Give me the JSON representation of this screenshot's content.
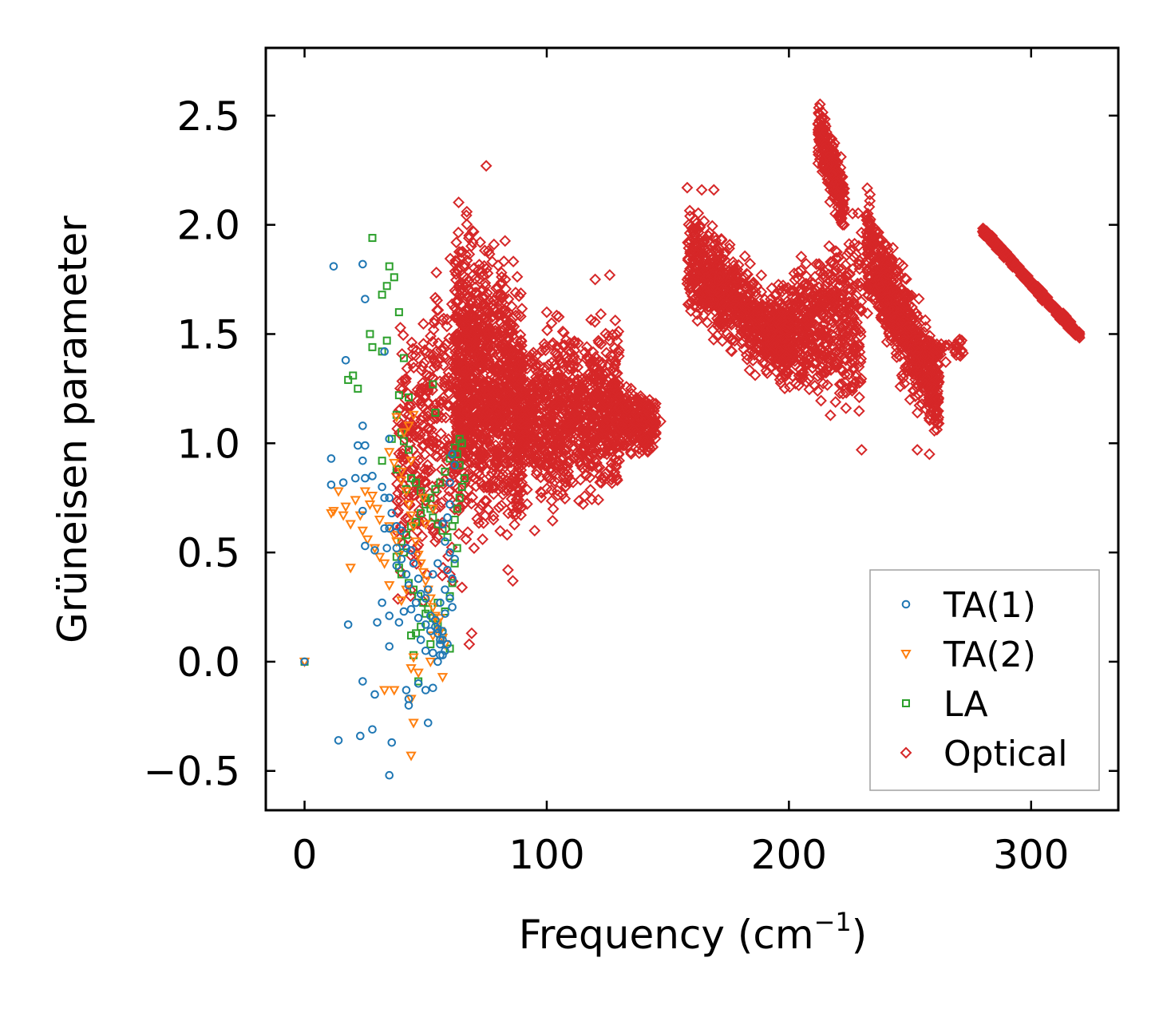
{
  "chart_data": {
    "type": "scatter",
    "title": "",
    "xlabel": "Frequency (cm",
    "xlabel_superscript": "−1",
    "xlabel_suffix": ")",
    "ylabel": "Grüneisen parameter",
    "xlim": [
      -16,
      336
    ],
    "ylim": [
      -0.68,
      2.81
    ],
    "xticks": [
      0,
      100,
      200,
      300
    ],
    "xtick_labels": [
      "0",
      "100",
      "200",
      "300"
    ],
    "yticks": [
      -0.5,
      0.0,
      0.5,
      1.0,
      1.5,
      2.0,
      2.5
    ],
    "ytick_labels": [
      "−0.5",
      "0.0",
      "0.5",
      "1.0",
      "1.5",
      "2.0",
      "2.5"
    ],
    "grid": false,
    "legend_position": "bottom-right",
    "series": [
      {
        "name": "TA(1)",
        "marker": "circle",
        "color": "#1f77b4",
        "points": [
          [
            0,
            0
          ],
          [
            12,
            1.81
          ],
          [
            24,
            1.82
          ],
          [
            25,
            1.66
          ],
          [
            33,
            1.42
          ],
          [
            17,
            1.38
          ],
          [
            11,
            0.93
          ],
          [
            11,
            0.81
          ],
          [
            16,
            0.82
          ],
          [
            24,
            1.08
          ],
          [
            22,
            0.99
          ],
          [
            25,
            0.99
          ],
          [
            24,
            0.92
          ],
          [
            21,
            0.84
          ],
          [
            25,
            0.84
          ],
          [
            28,
            0.85
          ],
          [
            32,
            0.8
          ],
          [
            33,
            0.75
          ],
          [
            35,
            0.75
          ],
          [
            35,
            1.02
          ],
          [
            36,
            0.68
          ],
          [
            33,
            0.61
          ],
          [
            35,
            0.61
          ],
          [
            38,
            0.62
          ],
          [
            40,
            0.6
          ],
          [
            24,
            0.69
          ],
          [
            25,
            0.53
          ],
          [
            29,
            0.51
          ],
          [
            34,
            0.52
          ],
          [
            38,
            0.52
          ],
          [
            42,
            0.52
          ],
          [
            44,
            0.51
          ],
          [
            40,
            0.47
          ],
          [
            45,
            0.45
          ],
          [
            38,
            0.44
          ],
          [
            42,
            0.4
          ],
          [
            47,
            0.38
          ],
          [
            43,
            0.35
          ],
          [
            48,
            0.31
          ],
          [
            50,
            0.29
          ],
          [
            46,
            0.27
          ],
          [
            41,
            0.23
          ],
          [
            44,
            0.24
          ],
          [
            47,
            0.2
          ],
          [
            52,
            0.21
          ],
          [
            50,
            0.17
          ],
          [
            54,
            0.16
          ],
          [
            55,
            0.15
          ],
          [
            56,
            0.1
          ],
          [
            57,
            0.1
          ],
          [
            55,
            0.13
          ],
          [
            57,
            0.14
          ],
          [
            53,
            0.04
          ],
          [
            56,
            0.03
          ],
          [
            57,
            0.03
          ],
          [
            55,
            0.0
          ],
          [
            59,
            0.08
          ],
          [
            50,
            0.05
          ],
          [
            32,
            0.27
          ],
          [
            35,
            0.21
          ],
          [
            30,
            0.18
          ],
          [
            18,
            0.17
          ],
          [
            35,
            0.07
          ],
          [
            39,
            0.18
          ],
          [
            48,
            0.1
          ],
          [
            24,
            -0.09
          ],
          [
            29,
            -0.15
          ],
          [
            42,
            -0.13
          ],
          [
            43,
            -0.17
          ],
          [
            43,
            -0.2
          ],
          [
            47,
            -0.1
          ],
          [
            50,
            -0.13
          ],
          [
            53,
            -0.12
          ],
          [
            51,
            -0.28
          ],
          [
            14,
            -0.36
          ],
          [
            23,
            -0.34
          ],
          [
            28,
            -0.31
          ],
          [
            36,
            -0.37
          ],
          [
            35,
            -0.52
          ],
          [
            57,
            0.63
          ],
          [
            59,
            0.66
          ],
          [
            60,
            0.72
          ],
          [
            58,
            0.55
          ],
          [
            60,
            0.5
          ],
          [
            62,
            0.47
          ],
          [
            59,
            0.42
          ],
          [
            61,
            0.38
          ],
          [
            58,
            0.33
          ],
          [
            60,
            0.29
          ],
          [
            61,
            0.25
          ],
          [
            62,
            0.9
          ],
          [
            61,
            0.95
          ],
          [
            60,
            0.82
          ],
          [
            55,
            0.45
          ],
          [
            53,
            0.4
          ],
          [
            51,
            0.33
          ],
          [
            56,
            0.27
          ],
          [
            58,
            0.22
          ],
          [
            54,
            0.19
          ],
          [
            52,
            0.14
          ],
          [
            56,
            0.08
          ],
          [
            58,
            0.05
          ]
        ]
      },
      {
        "name": "TA(2)",
        "marker": "triangle-down",
        "color": "#ff7f0e",
        "points": [
          [
            0,
            0
          ],
          [
            11,
            0.68
          ],
          [
            12,
            0.69
          ],
          [
            14,
            0.78
          ],
          [
            16,
            0.67
          ],
          [
            17,
            0.71
          ],
          [
            19,
            0.63
          ],
          [
            21,
            0.74
          ],
          [
            23,
            0.67
          ],
          [
            24,
            0.6
          ],
          [
            25,
            0.78
          ],
          [
            27,
            0.72
          ],
          [
            28,
            0.76
          ],
          [
            30,
            0.7
          ],
          [
            31,
            0.65
          ],
          [
            26,
            0.56
          ],
          [
            29,
            0.52
          ],
          [
            31,
            0.48
          ],
          [
            33,
            0.45
          ],
          [
            35,
            0.62
          ],
          [
            37,
            0.58
          ],
          [
            38,
            0.55
          ],
          [
            39,
            0.49
          ],
          [
            40,
            0.83
          ],
          [
            42,
            0.78
          ],
          [
            43,
            0.72
          ],
          [
            44,
            0.67
          ],
          [
            45,
            0.62
          ],
          [
            46,
            0.55
          ],
          [
            47,
            0.49
          ],
          [
            48,
            0.45
          ],
          [
            49,
            0.41
          ],
          [
            50,
            0.37
          ],
          [
            51,
            0.33
          ],
          [
            52,
            0.29
          ],
          [
            53,
            0.25
          ],
          [
            54,
            0.21
          ],
          [
            55,
            0.18
          ],
          [
            56,
            0.14
          ],
          [
            57,
            0.11
          ],
          [
            58,
            0.08
          ],
          [
            43,
            1.08
          ],
          [
            38,
            1.12
          ],
          [
            41,
            1.05
          ],
          [
            35,
            0.96
          ],
          [
            37,
            0.91
          ],
          [
            44,
            0.92
          ],
          [
            19,
            0.43
          ],
          [
            35,
            0.35
          ],
          [
            45,
            0.02
          ],
          [
            44,
            -0.03
          ],
          [
            47,
            -0.05
          ],
          [
            52,
            0.0
          ],
          [
            57,
            -0.07
          ],
          [
            44,
            -0.17
          ],
          [
            45,
            -0.28
          ],
          [
            44,
            -0.43
          ],
          [
            53,
            0.12
          ],
          [
            56,
            0.2
          ],
          [
            50,
            0.63
          ],
          [
            53,
            0.7
          ],
          [
            49,
            0.75
          ],
          [
            45,
            1.13
          ],
          [
            40,
            0.87
          ],
          [
            33,
            -0.13
          ],
          [
            37,
            -0.13
          ],
          [
            42,
            0.33
          ],
          [
            40,
            0.28
          ]
        ]
      },
      {
        "name": "LA",
        "marker": "square",
        "color": "#2ca02c",
        "points": [
          [
            0,
            0
          ],
          [
            28,
            1.94
          ],
          [
            35,
            1.81
          ],
          [
            34,
            1.72
          ],
          [
            32,
            1.68
          ],
          [
            37,
            1.76
          ],
          [
            39,
            1.6
          ],
          [
            27,
            1.5
          ],
          [
            28,
            1.44
          ],
          [
            34,
            1.47
          ],
          [
            32,
            1.42
          ],
          [
            18,
            1.29
          ],
          [
            20,
            1.31
          ],
          [
            22,
            1.25
          ],
          [
            41,
            1.39
          ],
          [
            39,
            1.22
          ],
          [
            43,
            1.21
          ],
          [
            53,
            1.27
          ],
          [
            54,
            1.14
          ],
          [
            38,
            1.13
          ],
          [
            40,
            1.05
          ],
          [
            36,
            1.02
          ],
          [
            41,
            1.01
          ],
          [
            43,
            0.97
          ],
          [
            32,
            0.92
          ],
          [
            38,
            0.88
          ],
          [
            44,
            0.84
          ],
          [
            42,
            0.79
          ],
          [
            46,
            0.82
          ],
          [
            48,
            0.78
          ],
          [
            50,
            0.75
          ],
          [
            52,
            0.7
          ],
          [
            53,
            0.66
          ],
          [
            55,
            0.63
          ],
          [
            57,
            0.6
          ],
          [
            59,
            0.57
          ],
          [
            61,
            0.62
          ],
          [
            62,
            0.65
          ],
          [
            63,
            0.7
          ],
          [
            64,
            0.75
          ],
          [
            65,
            0.8
          ],
          [
            66,
            0.84
          ],
          [
            64,
            0.9
          ],
          [
            63,
            0.95
          ],
          [
            65,
            1.0
          ],
          [
            64,
            1.02
          ],
          [
            62,
            0.98
          ],
          [
            60,
            0.93
          ],
          [
            58,
            0.87
          ],
          [
            56,
            0.82
          ],
          [
            54,
            0.79
          ],
          [
            52,
            0.75
          ],
          [
            50,
            0.72
          ],
          [
            48,
            0.68
          ],
          [
            46,
            0.64
          ],
          [
            44,
            0.62
          ],
          [
            42,
            0.58
          ],
          [
            40,
            0.55
          ],
          [
            41,
            0.5
          ],
          [
            38,
            0.48
          ],
          [
            39,
            0.43
          ],
          [
            40,
            0.4
          ],
          [
            43,
            0.36
          ],
          [
            45,
            0.33
          ],
          [
            47,
            0.3
          ],
          [
            49,
            0.27
          ],
          [
            51,
            0.24
          ],
          [
            53,
            0.2
          ],
          [
            55,
            0.17
          ],
          [
            57,
            0.13
          ],
          [
            50,
            0.22
          ],
          [
            48,
            0.16
          ],
          [
            46,
            0.13
          ],
          [
            44,
            0.12
          ],
          [
            55,
            0.27
          ],
          [
            58,
            0.23
          ],
          [
            60,
            0.3
          ],
          [
            61,
            0.36
          ],
          [
            62,
            0.45
          ],
          [
            63,
            0.52
          ],
          [
            47,
            -0.09
          ],
          [
            45,
            0.03
          ],
          [
            52,
            0.08
          ],
          [
            56,
            0.1
          ],
          [
            60,
            0.06
          ]
        ]
      },
      {
        "name": "Optical",
        "marker": "diamond",
        "color": "#d62728",
        "clusters": [
          {
            "x0": 38,
            "x1": 68,
            "y_hi_start": 1.75,
            "y_hi_end": 2.05,
            "y_lo_start": 0.1,
            "y_lo_end": 0.3,
            "count": 380
          },
          {
            "x0": 62,
            "x1": 90,
            "y_hi_start": 2.2,
            "y_hi_end": 1.95,
            "y_lo_start": 0.55,
            "y_lo_end": 0.37,
            "count": 1100
          },
          {
            "x0": 88,
            "x1": 130,
            "y_hi_start": 1.6,
            "y_hi_end": 1.7,
            "y_lo_start": 0.6,
            "y_lo_end": 0.63,
            "count": 900
          },
          {
            "x0": 128,
            "x1": 145,
            "y_hi_start": 1.35,
            "y_hi_end": 1.25,
            "y_lo_start": 0.9,
            "y_lo_end": 0.92,
            "count": 250
          },
          {
            "x0": 158,
            "x1": 200,
            "y_hi_start": 2.18,
            "y_hi_end": 1.7,
            "y_lo_start": 1.5,
            "y_lo_end": 1.17,
            "count": 750
          },
          {
            "x0": 192,
            "x1": 230,
            "y_hi_start": 1.75,
            "y_hi_end": 2.2,
            "y_lo_start": 1.25,
            "y_lo_end": 0.96,
            "count": 650
          },
          {
            "x0": 212,
            "x1": 223,
            "y_hi_start": 2.66,
            "y_hi_end": 2.3,
            "y_lo_start": 2.2,
            "y_lo_end": 1.9,
            "count": 250
          },
          {
            "x0": 232,
            "x1": 262,
            "y_hi_start": 2.22,
            "y_hi_end": 1.5,
            "y_lo_start": 1.55,
            "y_lo_end": 0.94,
            "count": 700
          },
          {
            "x0": 255,
            "x1": 272,
            "y_hi_start": 1.5,
            "y_hi_end": 1.48,
            "y_lo_start": 1.35,
            "y_lo_end": 1.38,
            "count": 45
          },
          {
            "x0": 280,
            "x1": 320,
            "y_hi_start": 2.0,
            "y_hi_end": 1.52,
            "y_lo_start": 1.95,
            "y_lo_end": 1.46,
            "count": 500
          }
        ],
        "outliers": [
          [
            67,
            2.06
          ],
          [
            75,
            2.27
          ],
          [
            158,
            2.17
          ],
          [
            164,
            2.16
          ],
          [
            169,
            2.16
          ],
          [
            54,
            0.55
          ],
          [
            60,
            0.4
          ],
          [
            65,
            0.34
          ],
          [
            69,
            0.13
          ],
          [
            68,
            0.08
          ],
          [
            70,
            0.52
          ],
          [
            78,
            0.65
          ],
          [
            84,
            0.42
          ],
          [
            86,
            0.37
          ],
          [
            95,
            0.6
          ],
          [
            120,
            1.75
          ],
          [
            126,
            1.77
          ],
          [
            100,
            1.6
          ],
          [
            102,
            1.55
          ],
          [
            147,
            1.1
          ],
          [
            145,
            1.05
          ],
          [
            218,
            1.83
          ],
          [
            221,
            2.03
          ],
          [
            246,
            1.26
          ],
          [
            250,
            1.2
          ],
          [
            266,
            1.45
          ],
          [
            270,
            1.47
          ],
          [
            253,
            0.97
          ],
          [
            230,
            0.97
          ],
          [
            258,
            0.95
          ]
        ]
      }
    ]
  }
}
